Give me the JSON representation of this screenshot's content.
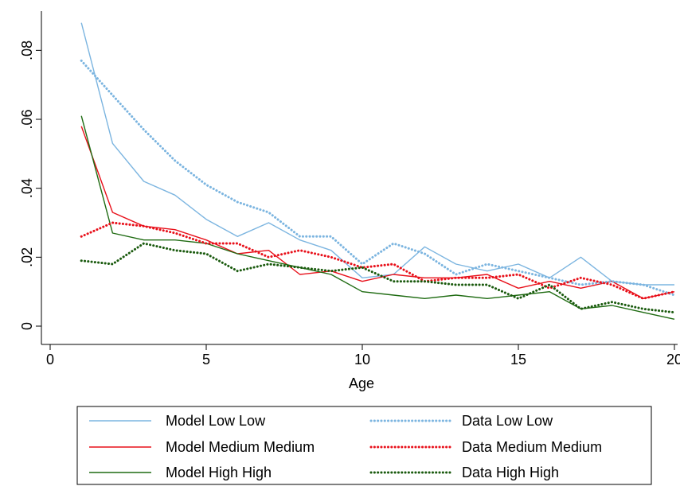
{
  "chart_data": {
    "type": "line",
    "title": "",
    "xlabel": "Age",
    "ylabel": "",
    "xlim": [
      0,
      20
    ],
    "ylim": [
      0,
      0.09
    ],
    "xticks": [
      0,
      5,
      10,
      15,
      20
    ],
    "xtick_labels": [
      "0",
      "5",
      "10",
      "15",
      "20"
    ],
    "yticks": [
      0,
      0.02,
      0.04,
      0.06,
      0.08
    ],
    "ytick_labels": [
      "0",
      ".02",
      ".04",
      ".06",
      ".08"
    ],
    "grid": false,
    "legend_position": "bottom",
    "x": [
      1,
      2,
      3,
      4,
      5,
      6,
      7,
      8,
      9,
      10,
      11,
      12,
      13,
      14,
      15,
      16,
      17,
      18,
      19,
      20
    ],
    "series": [
      {
        "name": "Model Low Low",
        "color": "#7cb5e0",
        "style": "solid",
        "values": [
          0.088,
          0.053,
          0.042,
          0.038,
          0.031,
          0.026,
          0.03,
          0.025,
          0.022,
          0.014,
          0.015,
          0.023,
          0.018,
          0.016,
          0.018,
          0.014,
          0.02,
          0.013,
          0.012,
          0.012
        ]
      },
      {
        "name": "Model Medium Medium",
        "color": "#e8101a",
        "style": "solid",
        "values": [
          0.058,
          0.033,
          0.029,
          0.028,
          0.025,
          0.021,
          0.022,
          0.015,
          0.016,
          0.013,
          0.015,
          0.014,
          0.014,
          0.015,
          0.011,
          0.013,
          0.011,
          0.013,
          0.008,
          0.01
        ]
      },
      {
        "name": "Model High High",
        "color": "#1f6b12",
        "style": "solid",
        "values": [
          0.061,
          0.027,
          0.025,
          0.025,
          0.024,
          0.021,
          0.019,
          0.017,
          0.015,
          0.01,
          0.009,
          0.008,
          0.009,
          0.008,
          0.009,
          0.01,
          0.005,
          0.006,
          0.004,
          0.002
        ]
      },
      {
        "name": "Data Low Low",
        "color": "#7cb5e0",
        "style": "dotted",
        "values": [
          0.077,
          0.067,
          0.057,
          0.048,
          0.041,
          0.036,
          0.033,
          0.026,
          0.026,
          0.018,
          0.024,
          0.021,
          0.015,
          0.018,
          0.016,
          0.014,
          0.012,
          0.013,
          0.012,
          0.009
        ]
      },
      {
        "name": "Data Medium Medium",
        "color": "#e8101a",
        "style": "dotted",
        "values": [
          0.026,
          0.03,
          0.029,
          0.027,
          0.024,
          0.024,
          0.02,
          0.022,
          0.02,
          0.017,
          0.018,
          0.013,
          0.014,
          0.014,
          0.015,
          0.011,
          0.014,
          0.012,
          0.008,
          0.01
        ]
      },
      {
        "name": "Data High High",
        "color": "#1a5a0e",
        "style": "dotted",
        "values": [
          0.019,
          0.018,
          0.024,
          0.022,
          0.021,
          0.016,
          0.018,
          0.017,
          0.016,
          0.017,
          0.013,
          0.013,
          0.012,
          0.012,
          0.008,
          0.012,
          0.005,
          0.007,
          0.005,
          0.004
        ]
      }
    ]
  }
}
